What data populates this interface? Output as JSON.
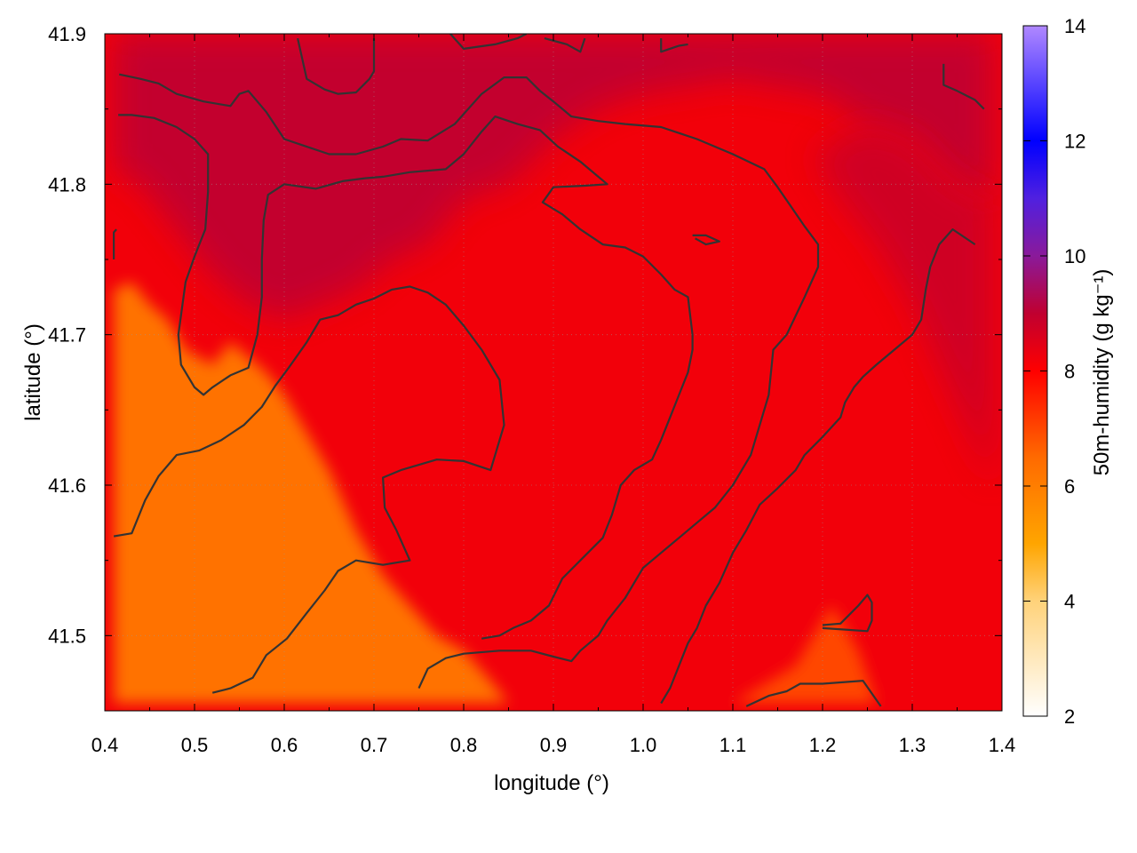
{
  "chart_data": {
    "type": "heatmap",
    "xlabel": "longitude (°)",
    "ylabel": "latitude (°)",
    "colorbar_label": "50m-humidity (g kg⁻¹)",
    "xlim": [
      0.4,
      1.4
    ],
    "ylim": [
      41.45,
      41.9
    ],
    "clim": [
      2,
      14
    ],
    "x_ticks": [
      "0.4",
      "0.5",
      "0.6",
      "0.7",
      "0.8",
      "0.9",
      "1.0",
      "1.1",
      "1.2",
      "1.3",
      "1.4"
    ],
    "y_ticks": [
      "41.5",
      "41.6",
      "41.7",
      "41.8",
      "41.9"
    ],
    "colorbar_ticks": [
      "2",
      "4",
      "6",
      "8",
      "10",
      "12",
      "14"
    ],
    "grid": true,
    "colormap": [
      {
        "value": 2,
        "color": "#ffffff"
      },
      {
        "value": 4,
        "color": "#ffd27a"
      },
      {
        "value": 5,
        "color": "#ffa500"
      },
      {
        "value": 6.5,
        "color": "#ff6a00"
      },
      {
        "value": 8,
        "color": "#ff0000"
      },
      {
        "value": 9,
        "color": "#c00030"
      },
      {
        "value": 10,
        "color": "#8a1a9a"
      },
      {
        "value": 11,
        "color": "#5020e0"
      },
      {
        "value": 12,
        "color": "#0000ff"
      },
      {
        "value": 14,
        "color": "#b088ff"
      }
    ],
    "regions": [
      {
        "name": "dry-southwest",
        "humidity": 6.3,
        "polygon": [
          [
            0.41,
            41.73
          ],
          [
            0.43,
            41.735
          ],
          [
            0.45,
            41.72
          ],
          [
            0.47,
            41.71
          ],
          [
            0.49,
            41.69
          ],
          [
            0.52,
            41.68
          ],
          [
            0.54,
            41.695
          ],
          [
            0.56,
            41.685
          ],
          [
            0.58,
            41.675
          ],
          [
            0.6,
            41.66
          ],
          [
            0.62,
            41.64
          ],
          [
            0.65,
            41.61
          ],
          [
            0.68,
            41.57
          ],
          [
            0.71,
            41.54
          ],
          [
            0.74,
            41.52
          ],
          [
            0.77,
            41.5
          ],
          [
            0.8,
            41.49
          ],
          [
            0.83,
            41.47
          ],
          [
            0.85,
            41.455
          ],
          [
            0.41,
            41.455
          ]
        ]
      },
      {
        "name": "moist-north",
        "humidity": 9.0,
        "polygon": [
          [
            0.41,
            41.9
          ],
          [
            1.39,
            41.9
          ],
          [
            1.39,
            41.79
          ],
          [
            1.35,
            41.8
          ],
          [
            1.3,
            41.83
          ],
          [
            1.25,
            41.84
          ],
          [
            1.2,
            41.86
          ],
          [
            1.1,
            41.87
          ],
          [
            1.0,
            41.86
          ],
          [
            0.95,
            41.85
          ],
          [
            0.9,
            41.83
          ],
          [
            0.85,
            41.8
          ],
          [
            0.8,
            41.79
          ],
          [
            0.76,
            41.76
          ],
          [
            0.72,
            41.75
          ],
          [
            0.68,
            41.73
          ],
          [
            0.64,
            41.72
          ],
          [
            0.6,
            41.71
          ],
          [
            0.56,
            41.72
          ],
          [
            0.52,
            41.74
          ],
          [
            0.48,
            41.77
          ],
          [
            0.44,
            41.8
          ],
          [
            0.41,
            41.81
          ]
        ]
      },
      {
        "name": "moist-east",
        "humidity": 8.8,
        "polygon": [
          [
            1.39,
            41.79
          ],
          [
            1.39,
            41.6
          ],
          [
            1.36,
            41.64
          ],
          [
            1.33,
            41.68
          ],
          [
            1.3,
            41.72
          ],
          [
            1.26,
            41.76
          ],
          [
            1.22,
            41.79
          ],
          [
            1.19,
            41.82
          ],
          [
            1.25,
            41.84
          ],
          [
            1.3,
            41.83
          ],
          [
            1.35,
            41.8
          ]
        ]
      },
      {
        "name": "orange-band-east",
        "humidity": 7.0,
        "polygon": [
          [
            1.1,
            41.455
          ],
          [
            1.18,
            41.455
          ],
          [
            1.26,
            41.455
          ],
          [
            1.24,
            41.49
          ],
          [
            1.21,
            41.52
          ],
          [
            1.17,
            41.48
          ]
        ]
      }
    ],
    "contours": [
      [
        [
          0.41,
          41.566
        ],
        [
          0.43,
          41.568
        ],
        [
          0.445,
          41.59
        ],
        [
          0.46,
          41.606
        ],
        [
          0.48,
          41.62
        ],
        [
          0.505,
          41.623
        ],
        [
          0.53,
          41.63
        ],
        [
          0.555,
          41.64
        ],
        [
          0.575,
          41.652
        ],
        [
          0.59,
          41.666
        ],
        [
          0.605,
          41.678
        ],
        [
          0.625,
          41.695
        ],
        [
          0.64,
          41.71
        ],
        [
          0.66,
          41.713
        ],
        [
          0.68,
          41.72
        ],
        [
          0.7,
          41.724
        ],
        [
          0.72,
          41.73
        ],
        [
          0.74,
          41.732
        ],
        [
          0.76,
          41.728
        ],
        [
          0.78,
          41.72
        ],
        [
          0.8,
          41.706
        ],
        [
          0.82,
          41.69
        ],
        [
          0.84,
          41.67
        ],
        [
          0.845,
          41.64
        ],
        [
          0.83,
          41.61
        ],
        [
          0.8,
          41.616
        ],
        [
          0.77,
          41.617
        ],
        [
          0.73,
          41.61
        ],
        [
          0.71,
          41.605
        ],
        [
          0.712,
          41.585
        ],
        [
          0.725,
          41.57
        ],
        [
          0.74,
          41.55
        ],
        [
          0.71,
          41.547
        ],
        [
          0.68,
          41.55
        ],
        [
          0.66,
          41.543
        ],
        [
          0.645,
          41.53
        ],
        [
          0.625,
          41.515
        ],
        [
          0.603,
          41.498
        ],
        [
          0.58,
          41.487
        ],
        [
          0.565,
          41.472
        ],
        [
          0.54,
          41.465
        ],
        [
          0.52,
          41.462
        ]
      ],
      [
        [
          0.41,
          41.75
        ],
        [
          0.41,
          41.768
        ],
        [
          0.413,
          41.77
        ]
      ],
      [
        [
          0.416,
          41.873
        ],
        [
          0.44,
          41.87
        ],
        [
          0.46,
          41.867
        ],
        [
          0.48,
          41.86
        ],
        [
          0.51,
          41.855
        ],
        [
          0.54,
          41.852
        ],
        [
          0.55,
          41.86
        ],
        [
          0.56,
          41.862
        ],
        [
          0.58,
          41.848
        ],
        [
          0.6,
          41.83
        ],
        [
          0.62,
          41.826
        ],
        [
          0.65,
          41.82
        ],
        [
          0.68,
          41.82
        ],
        [
          0.71,
          41.825
        ],
        [
          0.73,
          41.83
        ],
        [
          0.76,
          41.829
        ],
        [
          0.79,
          41.84
        ],
        [
          0.82,
          41.86
        ],
        [
          0.845,
          41.871
        ],
        [
          0.87,
          41.871
        ],
        [
          0.885,
          41.862
        ],
        [
          0.9,
          41.855
        ],
        [
          0.92,
          41.845
        ],
        [
          0.95,
          41.842
        ],
        [
          0.98,
          41.84
        ],
        [
          1.02,
          41.838
        ],
        [
          1.06,
          41.83
        ],
        [
          1.1,
          41.82
        ],
        [
          1.135,
          41.81
        ],
        [
          1.15,
          41.798
        ],
        [
          1.165,
          41.785
        ],
        [
          1.18,
          41.772
        ],
        [
          1.195,
          41.76
        ],
        [
          1.195,
          41.745
        ],
        [
          1.18,
          41.725
        ],
        [
          1.16,
          41.7
        ],
        [
          1.145,
          41.69
        ],
        [
          1.14,
          41.66
        ],
        [
          1.13,
          41.64
        ],
        [
          1.12,
          41.62
        ],
        [
          1.1,
          41.6
        ],
        [
          1.08,
          41.585
        ],
        [
          1.06,
          41.575
        ],
        [
          1.04,
          41.565
        ],
        [
          1.02,
          41.555
        ],
        [
          1.0,
          41.545
        ],
        [
          0.98,
          41.525
        ],
        [
          0.96,
          41.51
        ],
        [
          0.95,
          41.5
        ],
        [
          0.93,
          41.49
        ],
        [
          0.92,
          41.483
        ],
        [
          0.9,
          41.486
        ],
        [
          0.875,
          41.49
        ],
        [
          0.84,
          41.49
        ],
        [
          0.8,
          41.488
        ],
        [
          0.78,
          41.485
        ],
        [
          0.76,
          41.478
        ],
        [
          0.75,
          41.465
        ]
      ],
      [
        [
          0.415,
          41.846
        ],
        [
          0.43,
          41.846
        ],
        [
          0.455,
          41.844
        ],
        [
          0.48,
          41.838
        ],
        [
          0.5,
          41.83
        ],
        [
          0.515,
          41.82
        ],
        [
          0.515,
          41.795
        ],
        [
          0.512,
          41.77
        ],
        [
          0.5,
          41.752
        ],
        [
          0.49,
          41.735
        ],
        [
          0.482,
          41.7
        ],
        [
          0.485,
          41.68
        ],
        [
          0.5,
          41.665
        ],
        [
          0.51,
          41.66
        ],
        [
          0.52,
          41.665
        ],
        [
          0.54,
          41.673
        ],
        [
          0.56,
          41.678
        ],
        [
          0.57,
          41.7
        ],
        [
          0.575,
          41.725
        ],
        [
          0.575,
          41.75
        ],
        [
          0.577,
          41.776
        ],
        [
          0.582,
          41.793
        ],
        [
          0.6,
          41.8
        ],
        [
          0.635,
          41.797
        ],
        [
          0.665,
          41.802
        ],
        [
          0.69,
          41.804
        ],
        [
          0.71,
          41.805
        ],
        [
          0.74,
          41.808
        ],
        [
          0.78,
          41.81
        ],
        [
          0.8,
          41.82
        ],
        [
          0.82,
          41.835
        ],
        [
          0.835,
          41.845
        ],
        [
          0.86,
          41.84
        ],
        [
          0.885,
          41.836
        ],
        [
          0.905,
          41.825
        ],
        [
          0.93,
          41.815
        ],
        [
          0.96,
          41.8
        ],
        [
          0.935,
          41.799
        ],
        [
          0.9,
          41.798
        ],
        [
          0.888,
          41.788
        ],
        [
          0.91,
          41.78
        ],
        [
          0.93,
          41.77
        ],
        [
          0.955,
          41.76
        ],
        [
          0.98,
          41.758
        ],
        [
          1.0,
          41.752
        ],
        [
          1.02,
          41.74
        ],
        [
          1.035,
          41.73
        ],
        [
          1.05,
          41.725
        ],
        [
          1.055,
          41.7
        ],
        [
          1.055,
          41.69
        ],
        [
          1.05,
          41.675
        ],
        [
          1.04,
          41.66
        ],
        [
          1.03,
          41.645
        ],
        [
          1.02,
          41.63
        ],
        [
          1.01,
          41.617
        ],
        [
          0.99,
          41.61
        ],
        [
          0.975,
          41.6
        ],
        [
          0.965,
          41.58
        ],
        [
          0.955,
          41.565
        ],
        [
          0.93,
          41.55
        ],
        [
          0.91,
          41.538
        ],
        [
          0.895,
          41.52
        ],
        [
          0.875,
          41.51
        ],
        [
          0.855,
          41.505
        ],
        [
          0.84,
          41.5
        ],
        [
          0.82,
          41.498
        ]
      ],
      [
        [
          0.615,
          41.897
        ],
        [
          0.625,
          41.87
        ],
        [
          0.645,
          41.863
        ],
        [
          0.66,
          41.86
        ],
        [
          0.68,
          41.861
        ],
        [
          0.695,
          41.87
        ],
        [
          0.7,
          41.875
        ],
        [
          0.7,
          41.897
        ]
      ],
      [
        [
          0.785,
          41.9
        ],
        [
          0.8,
          41.89
        ],
        [
          0.835,
          41.893
        ],
        [
          0.86,
          41.897
        ],
        [
          0.87,
          41.9
        ]
      ],
      [
        [
          0.89,
          41.897
        ],
        [
          0.915,
          41.893
        ],
        [
          0.93,
          41.888
        ],
        [
          0.935,
          41.897
        ]
      ],
      [
        [
          1.02,
          41.897
        ],
        [
          1.02,
          41.888
        ],
        [
          1.04,
          41.892
        ],
        [
          1.05,
          41.893
        ]
      ],
      [
        [
          1.055,
          41.766
        ],
        [
          1.07,
          41.766
        ],
        [
          1.085,
          41.762
        ],
        [
          1.07,
          41.76
        ],
        [
          1.058,
          41.764
        ]
      ],
      [
        [
          1.02,
          41.455
        ],
        [
          1.03,
          41.465
        ],
        [
          1.04,
          41.48
        ],
        [
          1.05,
          41.495
        ],
        [
          1.06,
          41.505
        ],
        [
          1.07,
          41.52
        ],
        [
          1.085,
          41.535
        ],
        [
          1.1,
          41.555
        ],
        [
          1.115,
          41.57
        ],
        [
          1.13,
          41.587
        ],
        [
          1.15,
          41.598
        ],
        [
          1.17,
          41.61
        ],
        [
          1.18,
          41.62
        ],
        [
          1.2,
          41.632
        ],
        [
          1.22,
          41.645
        ],
        [
          1.225,
          41.655
        ],
        [
          1.235,
          41.665
        ],
        [
          1.245,
          41.672
        ],
        [
          1.26,
          41.68
        ],
        [
          1.28,
          41.69
        ],
        [
          1.3,
          41.7
        ],
        [
          1.31,
          41.71
        ],
        [
          1.315,
          41.73
        ],
        [
          1.32,
          41.745
        ],
        [
          1.33,
          41.76
        ],
        [
          1.345,
          41.77
        ],
        [
          1.37,
          41.76
        ]
      ],
      [
        [
          1.335,
          41.88
        ],
        [
          1.335,
          41.866
        ],
        [
          1.35,
          41.862
        ],
        [
          1.37,
          41.856
        ],
        [
          1.38,
          41.85
        ]
      ],
      [
        [
          1.115,
          41.453
        ],
        [
          1.14,
          41.46
        ],
        [
          1.16,
          41.463
        ],
        [
          1.175,
          41.468
        ],
        [
          1.2,
          41.468
        ],
        [
          1.245,
          41.47
        ],
        [
          1.265,
          41.453
        ]
      ],
      [
        [
          1.2,
          41.507
        ],
        [
          1.22,
          41.508
        ],
        [
          1.24,
          41.52
        ],
        [
          1.25,
          41.527
        ],
        [
          1.255,
          41.522
        ],
        [
          1.255,
          41.51
        ],
        [
          1.25,
          41.503
        ],
        [
          1.2,
          41.505
        ]
      ]
    ]
  }
}
